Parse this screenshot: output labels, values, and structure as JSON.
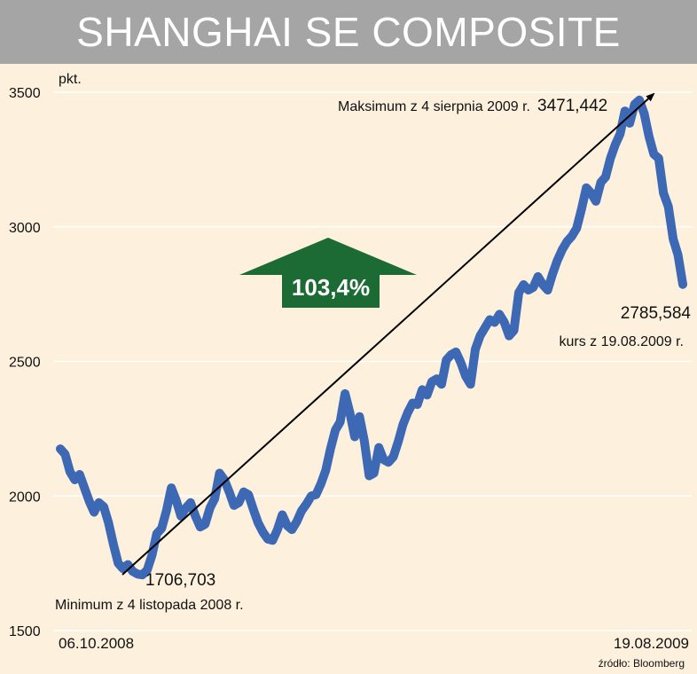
{
  "chart_data": {
    "type": "line",
    "title": "SHANGHAI SE COMPOSITE",
    "ylabel": "pkt.",
    "ylim": [
      1500,
      3500
    ],
    "yticks": [
      "3500",
      "3000",
      "2500",
      "2000",
      "1500"
    ],
    "x_start_label": "06.10.2008",
    "x_end_label": "19.08.2009",
    "grid": true,
    "series_color": "#3d68b4",
    "source": "źródło: Bloomberg",
    "series": [
      {
        "values": [
          2175,
          2155,
          2090,
          2060,
          2080,
          2030,
          1980,
          1940,
          1975,
          1960,
          1900,
          1820,
          1750,
          1730,
          1745,
          1720,
          1710,
          1707,
          1725,
          1780,
          1860,
          1880,
          1945,
          2030,
          1985,
          1925,
          1955,
          1975,
          1925,
          1885,
          1895,
          1955,
          1990,
          2085,
          2060,
          2015,
          1965,
          1975,
          2015,
          2005,
          1950,
          1900,
          1865,
          1840,
          1835,
          1875,
          1930,
          1890,
          1875,
          1905,
          1945,
          1970,
          2000,
          2005,
          2045,
          2095,
          2175,
          2245,
          2275,
          2380,
          2310,
          2220,
          2295,
          2205,
          2075,
          2085,
          2180,
          2135,
          2125,
          2145,
          2200,
          2265,
          2310,
          2345,
          2340,
          2395,
          2375,
          2425,
          2435,
          2415,
          2505,
          2525,
          2535,
          2495,
          2445,
          2415,
          2545,
          2595,
          2625,
          2655,
          2645,
          2675,
          2645,
          2595,
          2615,
          2755,
          2785,
          2765,
          2775,
          2815,
          2785,
          2765,
          2825,
          2875,
          2915,
          2945,
          2965,
          2995,
          3065,
          3145,
          3125,
          3095,
          3165,
          3185,
          3255,
          3305,
          3345,
          3430,
          3385,
          3455,
          3471,
          3420,
          3335,
          3270,
          3255,
          3125,
          3075,
          2955,
          2895,
          2786
        ]
      }
    ],
    "annotations": {
      "max_label": "Maksimum z 4 sierpnia 2009 r.",
      "max_value": "3471,442",
      "min_value": "1706,703",
      "min_label": "Minimum z 4 listopada 2008 r.",
      "last_value": "2785,584",
      "last_label": "kurs z 19.08.2009 r.",
      "change": "103,4%"
    }
  },
  "colors": {
    "background": "#fdf1de",
    "title_bar": "#a5a5a5",
    "series": "#3d68b4",
    "arrow": "#1c6b34"
  }
}
